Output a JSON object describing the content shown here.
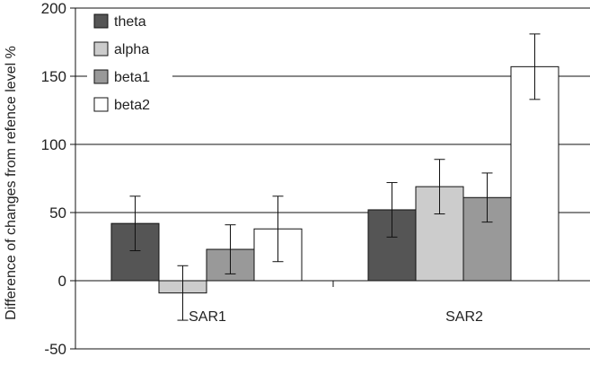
{
  "chart_data": {
    "type": "bar",
    "title": "",
    "xlabel": "",
    "ylabel": "Difference of changes from refence level %",
    "ylim": [
      -50,
      200
    ],
    "yticks": [
      -50,
      0,
      50,
      100,
      150,
      200
    ],
    "grid": true,
    "legend_position": "top-left",
    "categories": [
      "SAR1",
      "SAR2"
    ],
    "series": [
      {
        "name": "theta",
        "color": "#555555",
        "values": [
          42,
          52
        ],
        "error": [
          20,
          20
        ]
      },
      {
        "name": "alpha",
        "color": "#cccccc",
        "values": [
          -9,
          69
        ],
        "error": [
          20,
          20
        ]
      },
      {
        "name": "beta1",
        "color": "#999999",
        "values": [
          23,
          61
        ],
        "error": [
          18,
          18
        ]
      },
      {
        "name": "beta2",
        "color": "#ffffff",
        "values": [
          38,
          157
        ],
        "error": [
          24,
          24
        ]
      }
    ]
  }
}
